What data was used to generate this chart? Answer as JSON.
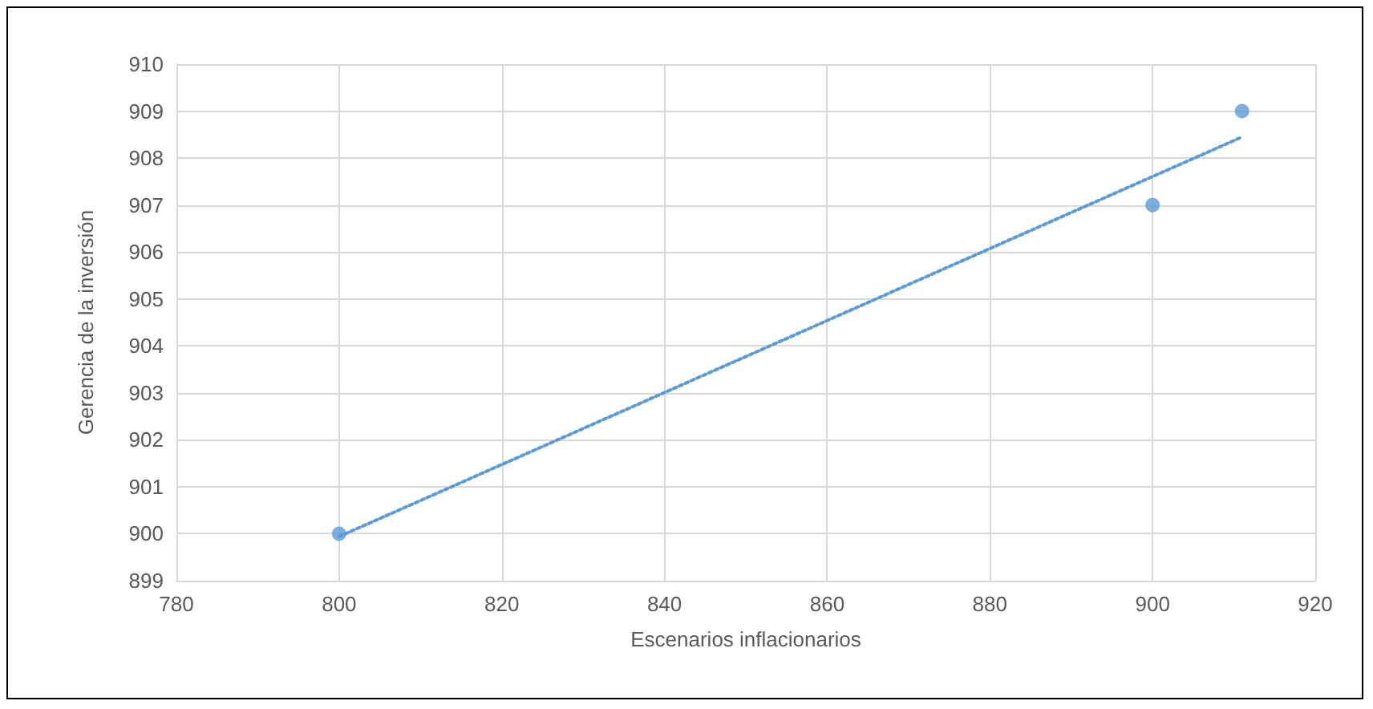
{
  "chart_data": {
    "type": "scatter",
    "xlabel": "Escenarios inflacionarios",
    "ylabel": "Gerencia de la inversión",
    "xlim": [
      780,
      920
    ],
    "xticks": [
      780,
      800,
      820,
      840,
      860,
      880,
      900,
      920
    ],
    "ylim": [
      899,
      910
    ],
    "yticks": [
      899,
      900,
      901,
      902,
      903,
      904,
      905,
      906,
      907,
      908,
      909,
      910
    ],
    "grid": true,
    "marker": "circle",
    "series": [
      {
        "color": "#5b9bd5",
        "x": [
          800,
          900,
          911
        ],
        "values": [
          900,
          907,
          909
        ]
      },
      {
        "type": "line",
        "color": "#5b9bd5",
        "line_style": "dotted",
        "marker": "none",
        "x": [
          800,
          911
        ],
        "values": [
          899.94,
          908.45
        ]
      }
    ]
  }
}
